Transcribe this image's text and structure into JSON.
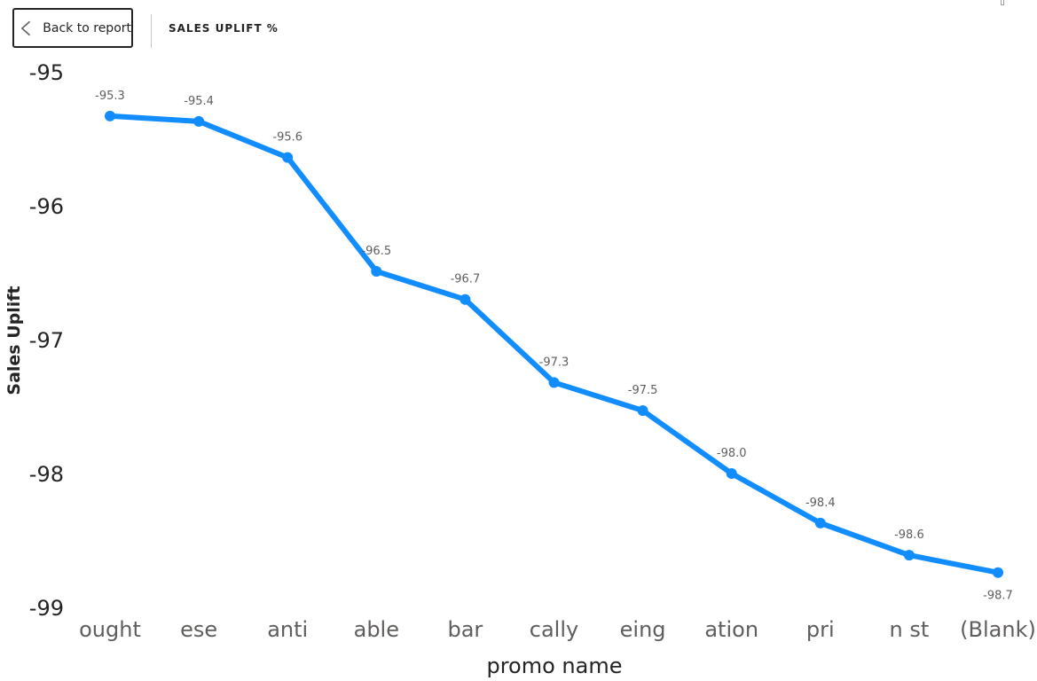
{
  "header": {
    "back_label": "Back to report",
    "back_icon": "chevron-left-icon",
    "title": "SALES UPLIFT %"
  },
  "chart_data": {
    "type": "line",
    "categories": [
      "ought",
      "ese",
      "anti",
      "able",
      "bar",
      "cally",
      "eing",
      "ation",
      "pri",
      "n st",
      "(Blank)"
    ],
    "series": [
      {
        "values": [
          -95.33,
          -95.37,
          -95.64,
          -96.49,
          -96.7,
          -97.32,
          -97.53,
          -98.0,
          -98.37,
          -98.61,
          -98.74
        ],
        "labels": [
          "-95.3",
          "-95.4",
          "-95.6",
          "-96.5",
          "-96.7",
          "-97.3",
          "-97.5",
          "-98.0",
          "-98.4",
          "-98.6",
          "-98.7"
        ],
        "color": "#118dff"
      }
    ],
    "xlabel": "promo name",
    "ylabel": "Sales Uplift",
    "ylim": [
      -99,
      -95
    ],
    "yticks": [
      -95,
      -96,
      -97,
      -98,
      -99
    ],
    "ytick_labels": [
      "-95",
      "-96",
      "-97",
      "-98",
      "-99"
    ],
    "grid": false,
    "legend": "none"
  }
}
